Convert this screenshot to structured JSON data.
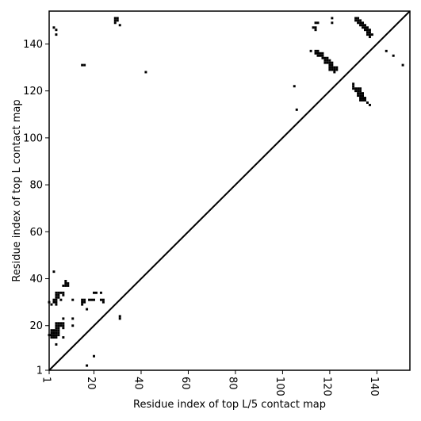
{
  "chart_data": {
    "type": "scatter",
    "xlabel": "Residue index of top L/5 contact map",
    "ylabel": "Residue index of top L contact map",
    "xlim": [
      1,
      154
    ],
    "ylim": [
      1,
      154
    ],
    "x_ticks": [
      1,
      20,
      40,
      60,
      80,
      100,
      120,
      140
    ],
    "y_ticks": [
      1,
      20,
      40,
      60,
      80,
      100,
      120,
      140
    ],
    "diagonal": true,
    "grid": false,
    "legend": "none",
    "marker_color": "#000000",
    "points": [
      [
        29,
        151
      ],
      [
        30,
        151
      ],
      [
        29,
        150
      ],
      [
        30,
        150
      ],
      [
        29,
        149
      ],
      [
        31,
        148
      ],
      [
        3,
        147
      ],
      [
        4,
        146
      ],
      [
        4,
        144
      ],
      [
        42,
        128
      ],
      [
        15,
        131
      ],
      [
        16,
        131
      ],
      [
        121,
        151
      ],
      [
        121,
        149
      ],
      [
        114,
        149
      ],
      [
        115,
        149
      ],
      [
        113,
        147
      ],
      [
        114,
        147
      ],
      [
        114,
        146
      ],
      [
        112,
        137
      ],
      [
        114,
        137
      ],
      [
        115,
        137
      ],
      [
        114,
        136
      ],
      [
        115,
        136
      ],
      [
        116,
        136
      ],
      [
        117,
        136
      ],
      [
        115,
        135
      ],
      [
        116,
        135
      ],
      [
        117,
        135
      ],
      [
        117,
        134
      ],
      [
        118,
        134
      ],
      [
        119,
        134
      ],
      [
        118,
        133
      ],
      [
        119,
        133
      ],
      [
        120,
        133
      ],
      [
        118,
        132
      ],
      [
        119,
        132
      ],
      [
        120,
        132
      ],
      [
        121,
        132
      ],
      [
        120,
        131
      ],
      [
        121,
        131
      ],
      [
        120,
        130
      ],
      [
        121,
        130
      ],
      [
        122,
        130
      ],
      [
        123,
        130
      ],
      [
        120,
        129
      ],
      [
        121,
        129
      ],
      [
        122,
        129
      ],
      [
        123,
        129
      ],
      [
        122,
        128
      ],
      [
        131,
        151
      ],
      [
        132,
        151
      ],
      [
        131,
        150
      ],
      [
        132,
        150
      ],
      [
        133,
        150
      ],
      [
        132,
        149
      ],
      [
        133,
        149
      ],
      [
        134,
        149
      ],
      [
        133,
        148
      ],
      [
        134,
        148
      ],
      [
        135,
        148
      ],
      [
        134,
        147
      ],
      [
        135,
        147
      ],
      [
        136,
        147
      ],
      [
        135,
        146
      ],
      [
        136,
        146
      ],
      [
        137,
        146
      ],
      [
        136,
        145
      ],
      [
        137,
        145
      ],
      [
        136,
        144
      ],
      [
        137,
        144
      ],
      [
        138,
        144
      ],
      [
        137,
        143
      ],
      [
        144,
        137
      ],
      [
        147,
        135
      ],
      [
        151,
        131
      ],
      [
        105,
        122
      ],
      [
        106,
        112
      ],
      [
        130,
        123
      ],
      [
        130,
        122
      ],
      [
        130,
        121
      ],
      [
        131,
        121
      ],
      [
        132,
        121
      ],
      [
        133,
        121
      ],
      [
        131,
        120
      ],
      [
        132,
        120
      ],
      [
        133,
        120
      ],
      [
        132,
        119
      ],
      [
        133,
        119
      ],
      [
        134,
        119
      ],
      [
        132,
        118
      ],
      [
        133,
        118
      ],
      [
        134,
        118
      ],
      [
        133,
        117
      ],
      [
        134,
        117
      ],
      [
        135,
        117
      ],
      [
        133,
        116
      ],
      [
        134,
        116
      ],
      [
        135,
        116
      ],
      [
        136,
        115
      ],
      [
        137,
        114
      ],
      [
        3,
        43
      ],
      [
        8,
        39
      ],
      [
        8,
        38
      ],
      [
        9,
        38
      ],
      [
        7,
        37
      ],
      [
        8,
        37
      ],
      [
        9,
        37
      ],
      [
        4,
        34
      ],
      [
        5,
        34
      ],
      [
        6,
        34
      ],
      [
        7,
        34
      ],
      [
        20,
        34
      ],
      [
        21,
        34
      ],
      [
        23,
        34
      ],
      [
        4,
        33
      ],
      [
        5,
        33
      ],
      [
        7,
        33
      ],
      [
        4,
        32
      ],
      [
        5,
        32
      ],
      [
        3,
        31
      ],
      [
        4,
        31
      ],
      [
        6,
        31
      ],
      [
        11,
        31
      ],
      [
        15,
        31
      ],
      [
        16,
        31
      ],
      [
        18,
        31
      ],
      [
        19,
        31
      ],
      [
        20,
        31
      ],
      [
        23,
        31
      ],
      [
        24,
        31
      ],
      [
        1,
        30
      ],
      [
        3,
        30
      ],
      [
        4,
        30
      ],
      [
        15,
        30
      ],
      [
        16,
        30
      ],
      [
        24,
        30
      ],
      [
        2,
        29
      ],
      [
        4,
        29
      ],
      [
        15,
        29
      ],
      [
        17,
        27
      ],
      [
        7,
        23
      ],
      [
        11,
        23
      ],
      [
        31,
        24
      ],
      [
        31,
        23
      ],
      [
        4,
        21
      ],
      [
        5,
        21
      ],
      [
        6,
        21
      ],
      [
        7,
        21
      ],
      [
        4,
        20
      ],
      [
        5,
        20
      ],
      [
        6,
        20
      ],
      [
        7,
        20
      ],
      [
        11,
        20
      ],
      [
        4,
        19
      ],
      [
        5,
        19
      ],
      [
        7,
        19
      ],
      [
        2,
        18
      ],
      [
        3,
        18
      ],
      [
        4,
        18
      ],
      [
        5,
        18
      ],
      [
        2,
        17
      ],
      [
        3,
        17
      ],
      [
        4,
        17
      ],
      [
        5,
        17
      ],
      [
        1,
        16
      ],
      [
        2,
        16
      ],
      [
        3,
        16
      ],
      [
        4,
        16
      ],
      [
        5,
        16
      ],
      [
        2,
        15
      ],
      [
        3,
        15
      ],
      [
        4,
        15
      ],
      [
        7,
        15
      ],
      [
        4,
        12
      ],
      [
        20,
        7
      ],
      [
        17,
        3
      ]
    ]
  }
}
